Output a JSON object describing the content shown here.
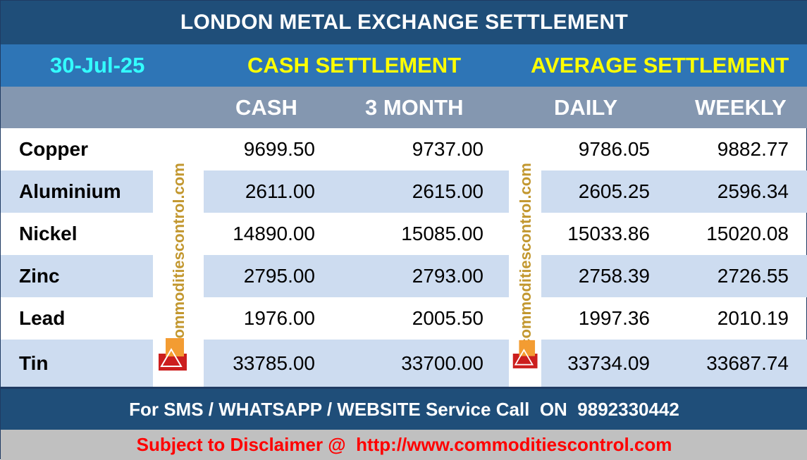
{
  "header": {
    "title": "LONDON METAL EXCHANGE SETTLEMENT"
  },
  "sections": {
    "date": "30-Jul-25",
    "cash_settlement": "CASH SETTLEMENT",
    "average_settlement": "AVERAGE SETTLEMENT"
  },
  "columns": {
    "cash": "CASH",
    "three_month": "3 MONTH",
    "daily": "DAILY",
    "weekly": "WEEKLY"
  },
  "rows": [
    {
      "metal": "Copper",
      "cash": "9699.50",
      "three_month": "9737.00",
      "daily": "9786.05",
      "weekly": "9882.77"
    },
    {
      "metal": "Aluminium",
      "cash": "2611.00",
      "three_month": "2615.00",
      "daily": "2605.25",
      "weekly": "2596.34"
    },
    {
      "metal": "Nickel",
      "cash": "14890.00",
      "three_month": "15085.00",
      "daily": "15033.86",
      "weekly": "15020.08"
    },
    {
      "metal": "Zinc",
      "cash": "2795.00",
      "three_month": "2793.00",
      "daily": "2758.39",
      "weekly": "2726.55"
    },
    {
      "metal": "Lead",
      "cash": "1976.00",
      "three_month": "2005.50",
      "daily": "1997.36",
      "weekly": "2010.19"
    },
    {
      "metal": "Tin",
      "cash": "33785.00",
      "three_month": "33700.00",
      "daily": "33734.09",
      "weekly": "33687.74"
    }
  ],
  "watermark": {
    "text": "commoditiescontrol.com"
  },
  "footer": {
    "service": "For SMS / WHATSAPP / WEBSITE Service Call  ON  9892330442",
    "disclaimer": "Subject to Disclaimer @  http://www.commoditiescontrol.com"
  },
  "colors": {
    "title_bg": "#1f4e79",
    "section_bg": "#2e75b6",
    "header_bg": "#8497b0",
    "row_shade": "#cddcf0",
    "date_text": "#33ffff",
    "section_text": "#ffff00",
    "disclaimer_text": "#ff0000",
    "disclaimer_bg": "#c0c0c0"
  }
}
